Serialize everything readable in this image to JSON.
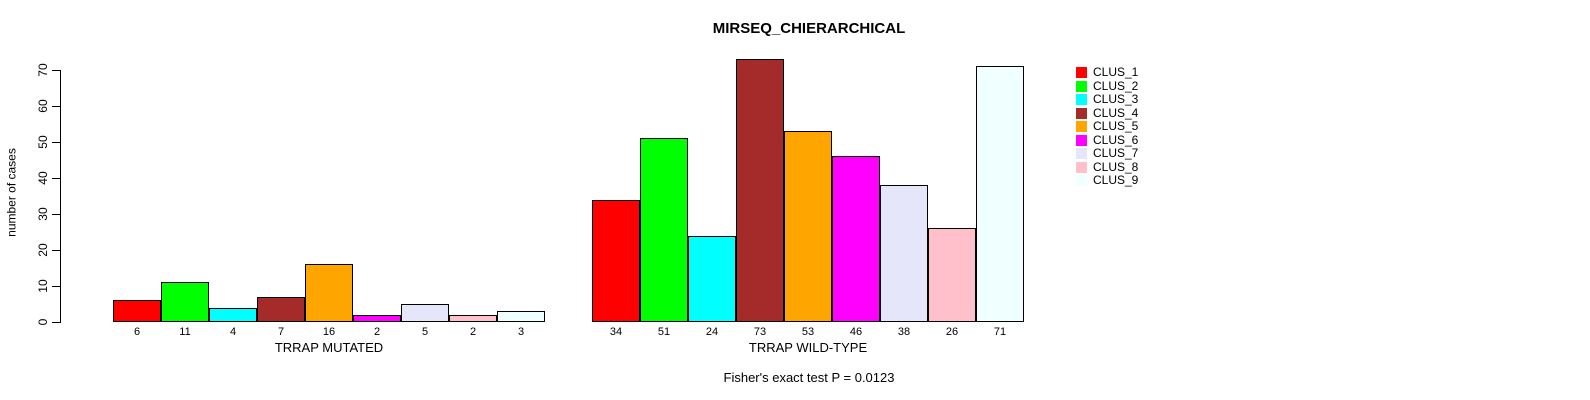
{
  "chart_data": {
    "type": "bar",
    "title": "MIRSEQ_CHIERARCHICAL",
    "ylabel": "number of cases",
    "ylim": [
      0,
      70
    ],
    "yticks": [
      0,
      10,
      20,
      30,
      40,
      50,
      60,
      70
    ],
    "grid": false,
    "legend_position": "right",
    "annotation": "Fisher's exact test P = 0.0123",
    "groups": [
      {
        "label": "TRRAP MUTATED",
        "values": [
          6,
          11,
          4,
          7,
          16,
          2,
          5,
          2,
          3
        ]
      },
      {
        "label": "TRRAP WILD-TYPE",
        "values": [
          34,
          51,
          24,
          73,
          53,
          46,
          38,
          26,
          71
        ]
      }
    ],
    "legend": [
      {
        "label": "CLUS_1",
        "color": "#FF0000"
      },
      {
        "label": "CLUS_2",
        "color": "#00FF00"
      },
      {
        "label": "CLUS_3",
        "color": "#00FFFF"
      },
      {
        "label": "CLUS_4",
        "color": "#A52A2A"
      },
      {
        "label": "CLUS_5",
        "color": "#FFA500"
      },
      {
        "label": "CLUS_6",
        "color": "#FF00FF"
      },
      {
        "label": "CLUS_7",
        "color": "#E6E6FA"
      },
      {
        "label": "CLUS_8",
        "color": "#FFC0CB"
      },
      {
        "label": "CLUS_9",
        "color": "#F0FFFF"
      }
    ],
    "axis_color": "#000000",
    "bar_border_color": "#000000"
  }
}
